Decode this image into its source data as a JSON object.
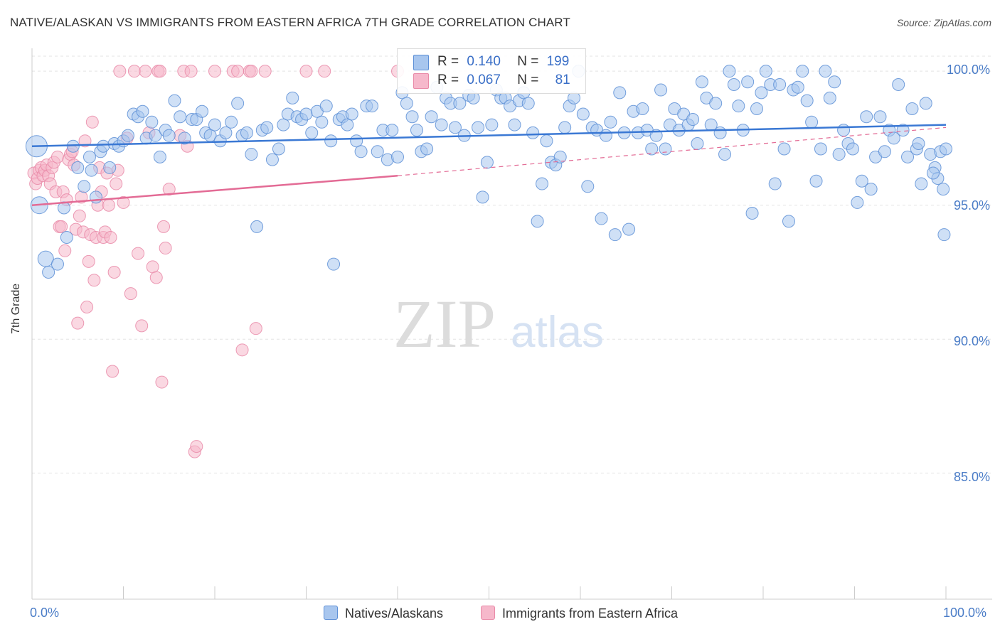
{
  "header": {
    "title": "NATIVE/ALASKAN VS IMMIGRANTS FROM EASTERN AFRICA 7TH GRADE CORRELATION CHART",
    "source": "Source: ZipAtlas.com"
  },
  "legend": {
    "row1": {
      "r_label": "R =",
      "r_value": "0.140",
      "n_label": "N =",
      "n_value": "199"
    },
    "row2": {
      "r_label": "R =",
      "r_value": "0.067",
      "n_label": "N =",
      "n_value": "81"
    }
  },
  "bottom_legend": {
    "series1": "Natives/Alaskans",
    "series2": "Immigrants from Eastern Africa"
  },
  "colors": {
    "blue_fill": "#a8c6ee",
    "blue_stroke": "#5d8fd6",
    "blue_line": "#3a78d4",
    "pink_fill": "#f6b8cb",
    "pink_stroke": "#e98aa8",
    "pink_line": "#e36b95",
    "tick_text": "#4a7cc7",
    "grid": "#e3e3e3"
  },
  "watermark": {
    "zip": "ZIP",
    "atlas": "atlas"
  },
  "chart_data": {
    "type": "scatter",
    "title": "NATIVE/ALASKAN VS IMMIGRANTS FROM EASTERN AFRICA 7TH GRADE CORRELATION CHART",
    "xlabel": "",
    "ylabel": "7th Grade",
    "xlim": [
      0,
      100
    ],
    "ylim": [
      80.3,
      100.8
    ],
    "x_tick_labels": [
      "0.0%",
      "100.0%"
    ],
    "y_ticks": [
      85,
      90,
      95,
      100
    ],
    "y_tick_labels": [
      "85.0%",
      "90.0%",
      "95.0%",
      "100.0%"
    ],
    "grid": true,
    "legend_position": "top-center",
    "series": [
      {
        "name": "Natives/Alaskans",
        "R": 0.14,
        "N": 199,
        "trend": {
          "x": [
            0,
            100
          ],
          "y": [
            97.2,
            98.0
          ],
          "style": "solid"
        },
        "points": [
          [
            0.5,
            97.2
          ],
          [
            0.8,
            95.0
          ],
          [
            1.5,
            93.0
          ],
          [
            1.8,
            92.5
          ],
          [
            2.8,
            92.8
          ],
          [
            3.5,
            94.9
          ],
          [
            3.8,
            93.8
          ],
          [
            4.5,
            97.2
          ],
          [
            5.0,
            96.4
          ],
          [
            5.7,
            95.7
          ],
          [
            6.3,
            96.8
          ],
          [
            6.5,
            96.3
          ],
          [
            7.0,
            95.3
          ],
          [
            7.5,
            97.0
          ],
          [
            7.8,
            97.2
          ],
          [
            8.5,
            96.4
          ],
          [
            9.0,
            97.3
          ],
          [
            9.5,
            97.2
          ],
          [
            10.0,
            97.4
          ],
          [
            10.5,
            97.6
          ],
          [
            11.1,
            98.4
          ],
          [
            11.6,
            98.3
          ],
          [
            12.1,
            98.5
          ],
          [
            12.5,
            97.5
          ],
          [
            13.1,
            98.1
          ],
          [
            13.5,
            97.6
          ],
          [
            14.0,
            96.8
          ],
          [
            14.6,
            97.8
          ],
          [
            15.0,
            97.6
          ],
          [
            15.6,
            98.9
          ],
          [
            16.2,
            98.3
          ],
          [
            16.7,
            97.5
          ],
          [
            17.5,
            98.2
          ],
          [
            18.0,
            98.2
          ],
          [
            18.6,
            98.5
          ],
          [
            19.0,
            97.7
          ],
          [
            19.5,
            97.6
          ],
          [
            20.0,
            98.0
          ],
          [
            20.6,
            97.4
          ],
          [
            21.2,
            97.7
          ],
          [
            21.8,
            98.1
          ],
          [
            22.5,
            98.8
          ],
          [
            23.0,
            97.6
          ],
          [
            23.5,
            97.7
          ],
          [
            24.0,
            96.9
          ],
          [
            24.6,
            94.2
          ],
          [
            25.2,
            97.8
          ],
          [
            25.7,
            97.9
          ],
          [
            26.3,
            96.7
          ],
          [
            27.0,
            97.1
          ],
          [
            27.5,
            98.0
          ],
          [
            28.0,
            98.4
          ],
          [
            28.5,
            99.0
          ],
          [
            29.0,
            98.3
          ],
          [
            29.5,
            98.2
          ],
          [
            30.0,
            98.4
          ],
          [
            30.6,
            97.7
          ],
          [
            31.2,
            98.5
          ],
          [
            31.7,
            98.1
          ],
          [
            32.2,
            98.7
          ],
          [
            32.7,
            97.4
          ],
          [
            33.0,
            92.8
          ],
          [
            33.6,
            98.2
          ],
          [
            34.0,
            98.3
          ],
          [
            34.5,
            98.0
          ],
          [
            35.0,
            98.4
          ],
          [
            35.5,
            97.4
          ],
          [
            36.0,
            97.0
          ],
          [
            36.6,
            98.7
          ],
          [
            37.2,
            98.7
          ],
          [
            37.8,
            97.0
          ],
          [
            38.4,
            97.8
          ],
          [
            38.9,
            96.7
          ],
          [
            39.4,
            97.8
          ],
          [
            40.0,
            96.8
          ],
          [
            40.5,
            99.2
          ],
          [
            41.0,
            98.8
          ],
          [
            41.6,
            98.3
          ],
          [
            42.1,
            97.8
          ],
          [
            42.6,
            97.0
          ],
          [
            43.2,
            97.1
          ],
          [
            43.7,
            98.3
          ],
          [
            44.3,
            99.4
          ],
          [
            44.8,
            98.0
          ],
          [
            45.3,
            99.0
          ],
          [
            45.8,
            98.8
          ],
          [
            46.3,
            97.9
          ],
          [
            46.8,
            98.8
          ],
          [
            47.3,
            97.6
          ],
          [
            47.8,
            99.1
          ],
          [
            48.3,
            99.0
          ],
          [
            48.8,
            97.9
          ],
          [
            49.3,
            95.3
          ],
          [
            49.8,
            96.6
          ],
          [
            50.3,
            98.0
          ],
          [
            50.8,
            99.3
          ],
          [
            51.3,
            99.0
          ],
          [
            51.8,
            99.0
          ],
          [
            52.3,
            98.7
          ],
          [
            52.8,
            98.0
          ],
          [
            53.3,
            98.9
          ],
          [
            53.8,
            99.2
          ],
          [
            54.3,
            98.8
          ],
          [
            54.8,
            97.7
          ],
          [
            55.3,
            94.4
          ],
          [
            55.8,
            95.8
          ],
          [
            56.3,
            97.4
          ],
          [
            56.8,
            96.6
          ],
          [
            57.3,
            96.5
          ],
          [
            57.8,
            96.8
          ],
          [
            58.3,
            97.9
          ],
          [
            58.8,
            98.7
          ],
          [
            59.3,
            99.0
          ],
          [
            59.8,
            100.0
          ],
          [
            60.3,
            98.4
          ],
          [
            60.8,
            95.7
          ],
          [
            61.3,
            97.9
          ],
          [
            61.8,
            97.8
          ],
          [
            62.3,
            94.5
          ],
          [
            62.8,
            97.6
          ],
          [
            63.3,
            98.1
          ],
          [
            63.8,
            93.9
          ],
          [
            64.3,
            99.2
          ],
          [
            64.8,
            97.7
          ],
          [
            65.3,
            94.1
          ],
          [
            65.8,
            98.5
          ],
          [
            66.3,
            97.7
          ],
          [
            66.8,
            98.6
          ],
          [
            67.3,
            97.8
          ],
          [
            67.8,
            97.1
          ],
          [
            68.3,
            97.6
          ],
          [
            68.8,
            99.3
          ],
          [
            69.3,
            97.1
          ],
          [
            69.8,
            98.0
          ],
          [
            70.3,
            98.6
          ],
          [
            70.8,
            97.8
          ],
          [
            71.3,
            98.4
          ],
          [
            71.8,
            98.0
          ],
          [
            72.3,
            98.2
          ],
          [
            72.8,
            97.3
          ],
          [
            73.3,
            99.6
          ],
          [
            73.8,
            99.0
          ],
          [
            74.3,
            98.0
          ],
          [
            74.8,
            98.8
          ],
          [
            75.3,
            97.7
          ],
          [
            75.8,
            96.9
          ],
          [
            76.3,
            100.0
          ],
          [
            76.8,
            99.5
          ],
          [
            77.3,
            98.7
          ],
          [
            77.8,
            97.8
          ],
          [
            78.3,
            99.6
          ],
          [
            78.8,
            94.7
          ],
          [
            79.3,
            98.6
          ],
          [
            79.8,
            99.2
          ],
          [
            80.3,
            100.0
          ],
          [
            80.8,
            99.5
          ],
          [
            81.3,
            95.8
          ],
          [
            81.8,
            99.5
          ],
          [
            82.3,
            97.1
          ],
          [
            82.8,
            94.4
          ],
          [
            83.3,
            99.3
          ],
          [
            83.8,
            99.4
          ],
          [
            84.3,
            100.0
          ],
          [
            84.8,
            98.9
          ],
          [
            85.3,
            98.1
          ],
          [
            85.8,
            95.9
          ],
          [
            86.3,
            97.1
          ],
          [
            86.8,
            100.0
          ],
          [
            87.3,
            99.0
          ],
          [
            87.8,
            99.6
          ],
          [
            88.3,
            96.9
          ],
          [
            88.8,
            97.8
          ],
          [
            89.3,
            97.3
          ],
          [
            89.8,
            97.1
          ],
          [
            90.3,
            95.1
          ],
          [
            90.8,
            95.9
          ],
          [
            91.3,
            98.3
          ],
          [
            91.8,
            95.6
          ],
          [
            92.3,
            96.8
          ],
          [
            92.8,
            98.3
          ],
          [
            93.3,
            97.0
          ],
          [
            93.8,
            97.8
          ],
          [
            94.3,
            97.5
          ],
          [
            94.8,
            99.5
          ],
          [
            95.3,
            97.8
          ],
          [
            95.8,
            96.8
          ],
          [
            96.3,
            98.6
          ],
          [
            96.8,
            97.1
          ],
          [
            97.3,
            95.8
          ],
          [
            97.8,
            98.8
          ],
          [
            98.3,
            96.9
          ],
          [
            98.8,
            96.4
          ],
          [
            99.1,
            96.0
          ],
          [
            99.4,
            97.0
          ],
          [
            99.7,
            95.6
          ],
          [
            99.8,
            93.9
          ],
          [
            100.0,
            97.1
          ],
          [
            98.6,
            96.2
          ],
          [
            97.0,
            97.3
          ]
        ]
      },
      {
        "name": "Immigrants from Eastern Africa",
        "R": 0.067,
        "N": 81,
        "trend": {
          "x": [
            0,
            40
          ],
          "y": [
            95.0,
            96.1
          ],
          "style": "solid",
          "extension": {
            "x": [
              40,
              100
            ],
            "y": [
              96.1,
              97.9
            ],
            "style": "dashed"
          }
        },
        "points": [
          [
            0.2,
            96.2
          ],
          [
            0.4,
            95.8
          ],
          [
            0.6,
            96.0
          ],
          [
            0.8,
            96.3
          ],
          [
            1.0,
            96.4
          ],
          [
            1.2,
            96.1
          ],
          [
            1.4,
            96.3
          ],
          [
            1.6,
            96.5
          ],
          [
            1.8,
            96.1
          ],
          [
            2.0,
            95.8
          ],
          [
            2.2,
            96.4
          ],
          [
            2.4,
            96.6
          ],
          [
            2.6,
            95.5
          ],
          [
            2.8,
            96.8
          ],
          [
            3.0,
            94.2
          ],
          [
            3.2,
            94.2
          ],
          [
            3.4,
            95.5
          ],
          [
            3.6,
            93.3
          ],
          [
            3.8,
            95.2
          ],
          [
            4.0,
            96.7
          ],
          [
            4.2,
            96.9
          ],
          [
            4.4,
            97.0
          ],
          [
            4.6,
            96.5
          ],
          [
            4.8,
            94.1
          ],
          [
            5.0,
            90.6
          ],
          [
            5.2,
            94.6
          ],
          [
            5.4,
            95.3
          ],
          [
            5.6,
            94.0
          ],
          [
            5.8,
            97.4
          ],
          [
            6.0,
            91.2
          ],
          [
            6.2,
            92.9
          ],
          [
            6.4,
            93.9
          ],
          [
            6.6,
            98.1
          ],
          [
            6.8,
            92.2
          ],
          [
            7.0,
            93.8
          ],
          [
            7.2,
            95.0
          ],
          [
            7.4,
            96.4
          ],
          [
            7.6,
            95.5
          ],
          [
            7.8,
            93.8
          ],
          [
            8.0,
            94.0
          ],
          [
            8.2,
            96.2
          ],
          [
            8.4,
            95.0
          ],
          [
            8.6,
            93.8
          ],
          [
            8.8,
            88.8
          ],
          [
            9.0,
            92.5
          ],
          [
            9.2,
            95.8
          ],
          [
            9.4,
            96.3
          ],
          [
            9.6,
            100.0
          ],
          [
            10.0,
            95.1
          ],
          [
            10.4,
            97.5
          ],
          [
            10.8,
            91.7
          ],
          [
            11.2,
            100.0
          ],
          [
            11.6,
            93.2
          ],
          [
            12.0,
            90.5
          ],
          [
            12.4,
            100.0
          ],
          [
            12.8,
            97.7
          ],
          [
            13.2,
            92.7
          ],
          [
            13.6,
            92.3
          ],
          [
            13.8,
            100.0
          ],
          [
            14.0,
            100.0
          ],
          [
            14.2,
            88.4
          ],
          [
            14.4,
            94.2
          ],
          [
            14.6,
            93.4
          ],
          [
            15.0,
            95.6
          ],
          [
            16.2,
            97.6
          ],
          [
            16.6,
            100.0
          ],
          [
            17.0,
            97.2
          ],
          [
            17.4,
            100.0
          ],
          [
            17.8,
            85.8
          ],
          [
            18.0,
            86.0
          ],
          [
            20.0,
            100.0
          ],
          [
            22.0,
            100.0
          ],
          [
            22.5,
            100.0
          ],
          [
            23.0,
            89.6
          ],
          [
            23.8,
            100.0
          ],
          [
            24.0,
            100.0
          ],
          [
            24.5,
            90.4
          ],
          [
            25.5,
            100.0
          ],
          [
            30.0,
            100.0
          ],
          [
            32.0,
            100.0
          ],
          [
            40.0,
            100.0
          ]
        ]
      }
    ]
  }
}
